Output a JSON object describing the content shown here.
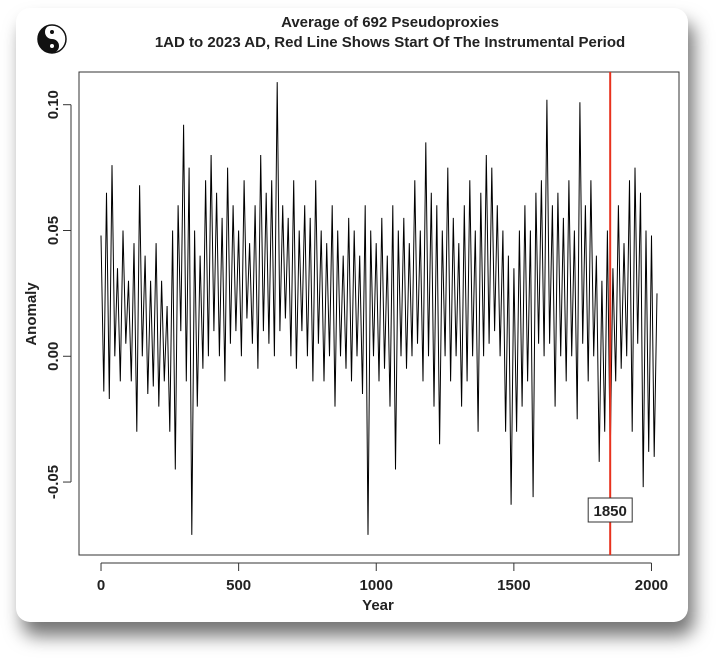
{
  "chart_data": {
    "type": "line",
    "title": "Average of 692 Pseudoproxies",
    "subtitle": "1AD to 2023 AD, Red Line Shows Start Of The Instrumental Period",
    "xlabel": "Year",
    "ylabel": "Anomaly",
    "xlim": [
      -80,
      2100
    ],
    "ylim": [
      -0.079,
      0.113
    ],
    "x_ticks": [
      "0",
      "500",
      "1000",
      "1500",
      "2000"
    ],
    "y_ticks": [
      "-0.05",
      "0.00",
      "0.05",
      "0.10"
    ],
    "grid": false,
    "x_start": 0,
    "x_step": 10,
    "note": "series sampled every 10 years (approximate)",
    "values": [
      0.048,
      -0.014,
      0.065,
      -0.017,
      0.076,
      0.0,
      0.035,
      -0.01,
      0.05,
      0.005,
      0.03,
      -0.01,
      0.045,
      -0.03,
      0.068,
      0.0,
      0.04,
      -0.015,
      0.03,
      -0.012,
      0.045,
      -0.02,
      0.03,
      -0.01,
      0.02,
      -0.03,
      0.05,
      -0.045,
      0.06,
      0.01,
      0.092,
      -0.01,
      0.075,
      -0.071,
      0.05,
      -0.02,
      0.04,
      -0.005,
      0.07,
      0.0,
      0.08,
      0.01,
      0.065,
      0.0,
      0.055,
      -0.01,
      0.075,
      0.005,
      0.06,
      0.01,
      0.05,
      0.0,
      0.07,
      0.015,
      0.045,
      0.005,
      0.06,
      -0.005,
      0.08,
      0.01,
      0.065,
      0.005,
      0.07,
      0.0,
      0.109,
      0.01,
      0.06,
      0.015,
      0.055,
      0.0,
      0.07,
      -0.005,
      0.05,
      0.01,
      0.06,
      0.0,
      0.055,
      -0.01,
      0.07,
      0.005,
      0.05,
      -0.01,
      0.045,
      0.0,
      0.06,
      -0.02,
      0.05,
      0.0,
      0.04,
      -0.005,
      0.055,
      -0.01,
      0.05,
      0.0,
      0.04,
      -0.015,
      0.06,
      -0.071,
      0.05,
      0.0,
      0.045,
      -0.01,
      0.055,
      -0.005,
      0.04,
      -0.02,
      0.06,
      -0.045,
      0.05,
      0.0,
      0.055,
      -0.005,
      0.045,
      0.0,
      0.07,
      0.005,
      0.05,
      -0.01,
      0.085,
      0.0,
      0.065,
      -0.02,
      0.06,
      -0.035,
      0.05,
      0.0,
      0.075,
      -0.01,
      0.055,
      0.0,
      0.045,
      -0.02,
      0.06,
      -0.01,
      0.07,
      0.0,
      0.05,
      -0.03,
      0.065,
      0.0,
      0.08,
      0.005,
      0.075,
      0.01,
      0.06,
      0.0,
      0.05,
      -0.03,
      0.04,
      -0.059,
      0.035,
      -0.03,
      0.05,
      -0.02,
      0.06,
      -0.01,
      0.05,
      -0.056,
      0.065,
      0.005,
      0.07,
      0.0,
      0.102,
      0.005,
      0.06,
      -0.02,
      0.065,
      0.0,
      0.055,
      -0.01,
      0.07,
      0.0,
      0.05,
      -0.025,
      0.101,
      0.005,
      0.06,
      -0.01,
      0.07,
      0.0,
      0.04,
      -0.042,
      0.03,
      -0.03,
      0.05,
      -0.04,
      0.035,
      -0.01,
      0.06,
      -0.005,
      0.045,
      0.0,
      0.07,
      -0.03,
      0.075,
      0.005,
      0.065,
      -0.052,
      0.05,
      -0.038,
      0.048,
      -0.04,
      0.025
    ],
    "vline": {
      "x": 1850,
      "label": "1850",
      "color": "#e8321e"
    },
    "line_color": "#000000"
  }
}
